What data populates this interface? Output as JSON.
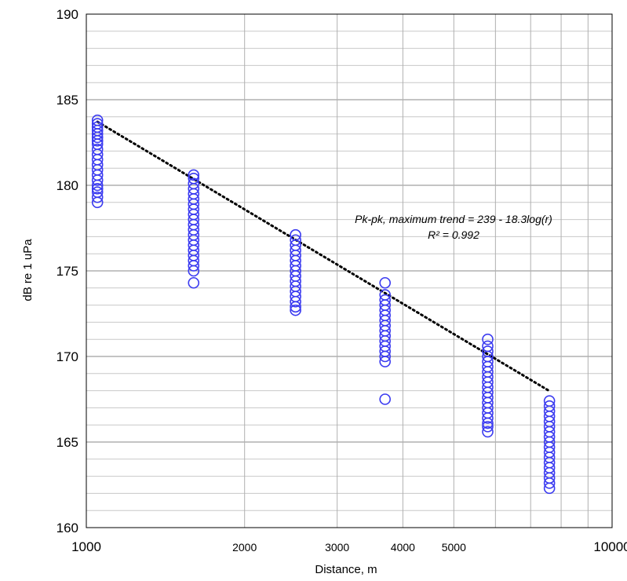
{
  "chart_data": {
    "type": "scatter",
    "x_scale": "log",
    "xlabel": "Distance, m",
    "ylabel": "dB re 1 uPa",
    "xlim": [
      1000,
      10000
    ],
    "ylim": [
      160,
      190
    ],
    "x_tick_labels": [
      "1000",
      "2000",
      "3000",
      "4000",
      "5000",
      "10000"
    ],
    "y_tick_labels": [
      "160",
      "165",
      "170",
      "175",
      "180",
      "185",
      "190"
    ],
    "grid": true,
    "legend": "none",
    "marker_color": "#3b3bf0",
    "trend_color": "#000000",
    "series": [
      {
        "points": [
          [
            1050,
            183.8
          ],
          [
            1050,
            183.6
          ],
          [
            1050,
            183.4
          ],
          [
            1050,
            183.2
          ],
          [
            1050,
            183.0
          ],
          [
            1050,
            182.8
          ],
          [
            1050,
            182.6
          ],
          [
            1050,
            182.4
          ],
          [
            1050,
            182.1
          ],
          [
            1050,
            181.8
          ],
          [
            1050,
            181.5
          ],
          [
            1050,
            181.2
          ],
          [
            1050,
            180.9
          ],
          [
            1050,
            180.6
          ],
          [
            1050,
            180.3
          ],
          [
            1050,
            180.0
          ],
          [
            1050,
            179.8
          ],
          [
            1050,
            179.6
          ],
          [
            1050,
            179.3
          ],
          [
            1050,
            179.0
          ],
          [
            1600,
            180.6
          ],
          [
            1600,
            180.4
          ],
          [
            1600,
            180.1
          ],
          [
            1600,
            179.8
          ],
          [
            1600,
            179.5
          ],
          [
            1600,
            179.2
          ],
          [
            1600,
            178.9
          ],
          [
            1600,
            178.6
          ],
          [
            1600,
            178.3
          ],
          [
            1600,
            178.0
          ],
          [
            1600,
            177.7
          ],
          [
            1600,
            177.4
          ],
          [
            1600,
            177.1
          ],
          [
            1600,
            176.8
          ],
          [
            1600,
            176.5
          ],
          [
            1600,
            176.2
          ],
          [
            1600,
            175.9
          ],
          [
            1600,
            175.6
          ],
          [
            1600,
            175.3
          ],
          [
            1600,
            175.0
          ],
          [
            1600,
            174.3
          ],
          [
            2500,
            177.1
          ],
          [
            2500,
            176.8
          ],
          [
            2500,
            176.5
          ],
          [
            2500,
            176.2
          ],
          [
            2500,
            175.9
          ],
          [
            2500,
            175.6
          ],
          [
            2500,
            175.3
          ],
          [
            2500,
            175.0
          ],
          [
            2500,
            174.7
          ],
          [
            2500,
            174.4
          ],
          [
            2500,
            174.1
          ],
          [
            2500,
            173.8
          ],
          [
            2500,
            173.5
          ],
          [
            2500,
            173.2
          ],
          [
            2500,
            172.9
          ],
          [
            2500,
            172.7
          ],
          [
            3700,
            174.3
          ],
          [
            3700,
            173.6
          ],
          [
            3700,
            173.3
          ],
          [
            3700,
            173.0
          ],
          [
            3700,
            172.7
          ],
          [
            3700,
            172.4
          ],
          [
            3700,
            172.1
          ],
          [
            3700,
            171.8
          ],
          [
            3700,
            171.5
          ],
          [
            3700,
            171.2
          ],
          [
            3700,
            170.9
          ],
          [
            3700,
            170.6
          ],
          [
            3700,
            170.3
          ],
          [
            3700,
            170.0
          ],
          [
            3700,
            169.7
          ],
          [
            3700,
            167.5
          ],
          [
            5800,
            171.0
          ],
          [
            5800,
            170.6
          ],
          [
            5800,
            170.3
          ],
          [
            5800,
            170.0
          ],
          [
            5800,
            169.7
          ],
          [
            5800,
            169.4
          ],
          [
            5800,
            169.1
          ],
          [
            5800,
            168.8
          ],
          [
            5800,
            168.5
          ],
          [
            5800,
            168.2
          ],
          [
            5800,
            167.9
          ],
          [
            5800,
            167.6
          ],
          [
            5800,
            167.3
          ],
          [
            5800,
            167.0
          ],
          [
            5800,
            166.7
          ],
          [
            5800,
            166.4
          ],
          [
            5800,
            166.1
          ],
          [
            5800,
            165.9
          ],
          [
            5800,
            165.6
          ],
          [
            7600,
            167.4
          ],
          [
            7600,
            167.1
          ],
          [
            7600,
            166.8
          ],
          [
            7600,
            166.5
          ],
          [
            7600,
            166.2
          ],
          [
            7600,
            165.9
          ],
          [
            7600,
            165.6
          ],
          [
            7600,
            165.3
          ],
          [
            7600,
            165.0
          ],
          [
            7600,
            164.7
          ],
          [
            7600,
            164.4
          ],
          [
            7600,
            164.1
          ],
          [
            7600,
            163.8
          ],
          [
            7600,
            163.5
          ],
          [
            7600,
            163.2
          ],
          [
            7600,
            162.9
          ],
          [
            7600,
            162.6
          ],
          [
            7600,
            162.3
          ]
        ]
      }
    ],
    "trendline": {
      "intercept": 239,
      "slope": -18.3,
      "x_range": [
        1050,
        7600
      ],
      "style": "dotted"
    },
    "annotations": [
      "Pk-pk, maximum trend = 239 - 18.3log(r)",
      "R² = 0.992"
    ]
  }
}
